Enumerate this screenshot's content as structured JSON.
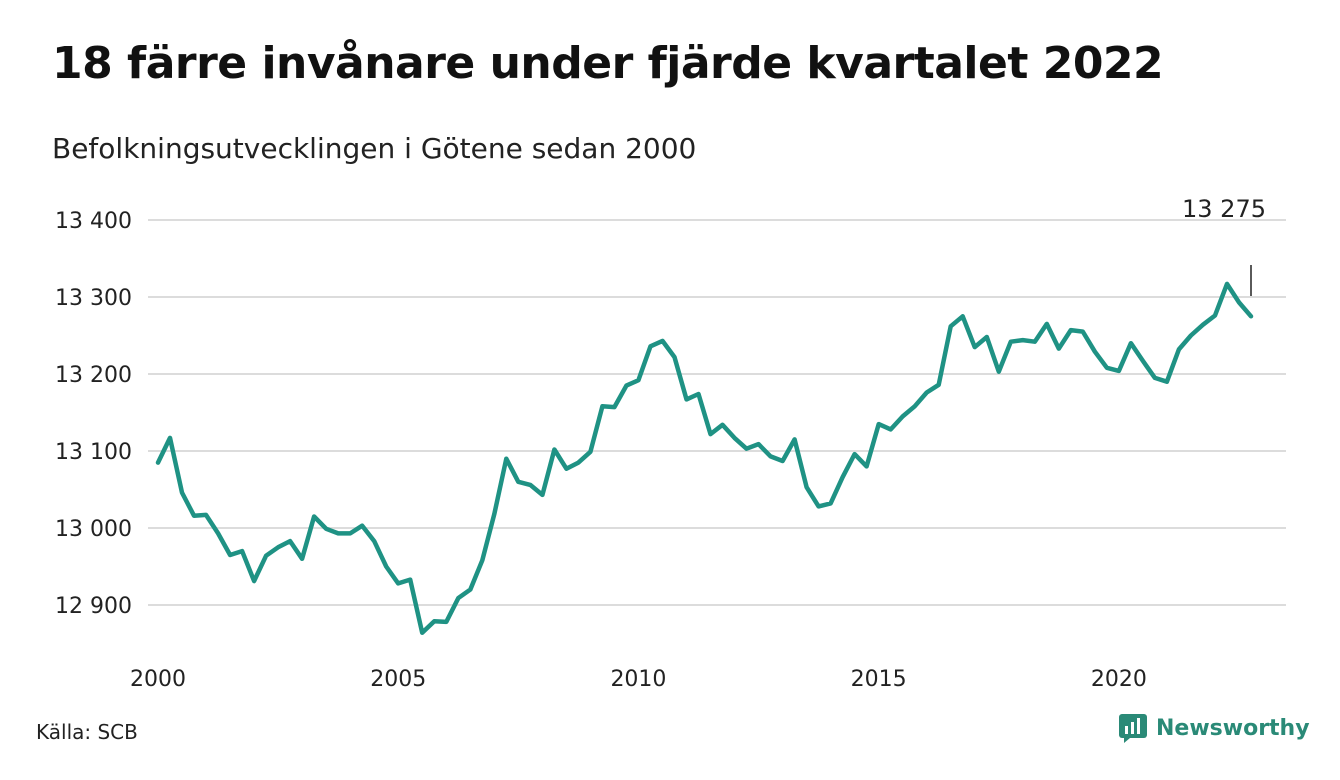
{
  "header": {
    "title": "18 färre invånare under fjärde kvartalet 2022",
    "subtitle": "Befolkningsutvecklingen i Götene sedan 2000"
  },
  "footer": {
    "source": "Källa: SCB",
    "brand": "Newsworthy"
  },
  "chart_data": {
    "type": "line",
    "title": "18 färre invånare under fjärde kvartalet 2022",
    "subtitle": "Befolkningsutvecklingen i Götene sedan 2000",
    "xlabel": "",
    "ylabel": "",
    "x_start": "2000 Q1",
    "x_end": "2022 Q4",
    "x_ticks": [
      2000,
      2005,
      2010,
      2015,
      2020
    ],
    "x_tick_labels": [
      "2000",
      "2005",
      "2010",
      "2015",
      "2020"
    ],
    "y_ticks": [
      12900,
      13000,
      13100,
      13200,
      13300,
      13400
    ],
    "y_tick_labels": [
      "12 900",
      "13 000",
      "13 100",
      "13 200",
      "13 300",
      "13 400"
    ],
    "ylim": [
      12850,
      13400
    ],
    "grid": true,
    "line_color": "#1f9284",
    "annotation": {
      "label": "13 275",
      "value": 13275,
      "x": 2022.75
    },
    "series": [
      {
        "values": [
          13085,
          13117,
          13046,
          13016,
          13017,
          12993,
          12965,
          12970,
          12931,
          12964,
          12975,
          12983,
          12960,
          13015,
          12999,
          12993,
          12993,
          13003,
          12983,
          12950,
          12928,
          12933,
          12864,
          12879,
          12878,
          12909,
          12920,
          12958,
          13018,
          13090,
          13060,
          13056,
          13043,
          13102,
          13077,
          13085,
          13099,
          13158,
          13157,
          13185,
          13192,
          13236,
          13243,
          13222,
          13167,
          13174,
          13122,
          13134,
          13117,
          13103,
          13109,
          13093,
          13087,
          13115,
          13053,
          13028,
          13032,
          13066,
          13096,
          13080,
          13135,
          13128,
          13145,
          13158,
          13176,
          13186,
          13262,
          13275,
          13235,
          13248,
          13203,
          13242,
          13244,
          13242,
          13265,
          13233,
          13257,
          13255,
          13229,
          13208,
          13204,
          13240,
          13217,
          13195,
          13190,
          13232,
          13250,
          13264,
          13276,
          13317,
          13293,
          13275
        ]
      }
    ]
  }
}
